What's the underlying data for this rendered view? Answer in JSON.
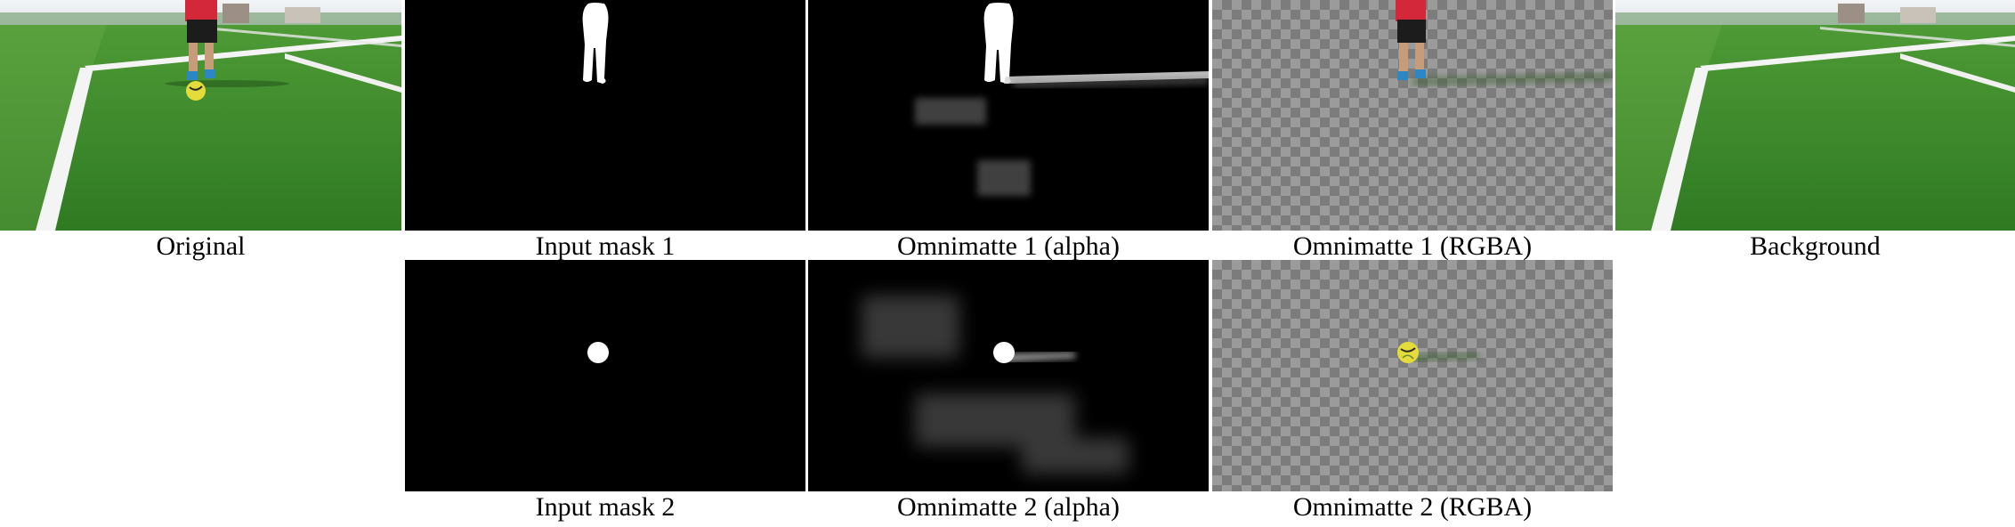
{
  "figure": {
    "captions": {
      "original": "Original",
      "input_mask_1": "Input mask 1",
      "omnimatte_1_alpha": "Omnimatte 1 (alpha)",
      "omnimatte_1_rgba": "Omnimatte 1 (RGBA)",
      "background": "Background",
      "input_mask_2": "Input mask 2",
      "omnimatte_2_alpha": "Omnimatte 2 (alpha)",
      "omnimatte_2_rgba": "Omnimatte 2 (RGBA)"
    },
    "colors": {
      "grass": "#3f8f2e",
      "grass_light": "#6fb04c",
      "line": "#f4f4f4",
      "sky": "#e9edf0",
      "shirt": "#d2283a",
      "shorts": "#1c1c1c",
      "ball": "#e4dc3a",
      "mask_bg": "#000000",
      "mask_fg": "#ffffff"
    }
  }
}
